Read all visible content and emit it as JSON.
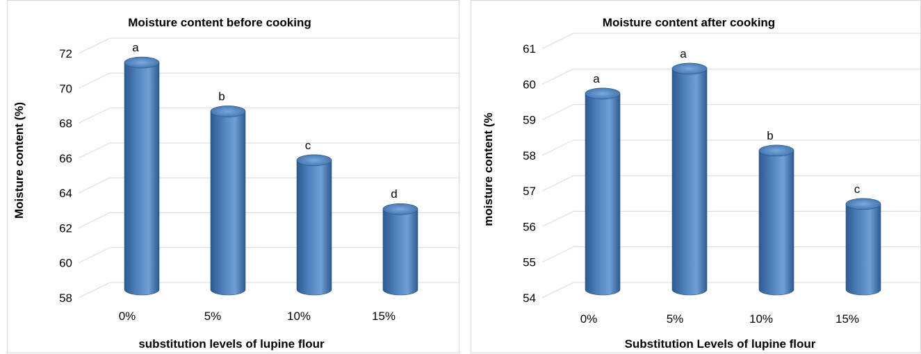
{
  "chart_data": [
    {
      "type": "bar",
      "title": "Moisture content before cooking",
      "xlabel": "substitution levels of lupine flour",
      "ylabel": "Moisture content (%)",
      "categories": [
        "0%",
        "5%",
        "10%",
        "15%"
      ],
      "values": [
        71.0,
        68.2,
        65.4,
        62.6
      ],
      "data_labels": [
        "a",
        "b",
        "c",
        "d"
      ],
      "y_ticks": [
        "58",
        "60",
        "62",
        "64",
        "66",
        "68",
        "70",
        "72"
      ],
      "ylim": [
        58,
        72
      ],
      "grid": true,
      "bar_color": "#4f81bd"
    },
    {
      "type": "bar",
      "title": "Moisture content after cooking",
      "xlabel": "Substitution Levels of lupine flour",
      "ylabel": "moisture content (%",
      "categories": [
        "0%",
        "5%",
        "10%",
        "15%"
      ],
      "values": [
        59.5,
        60.2,
        57.9,
        56.4
      ],
      "data_labels": [
        "a",
        "a",
        "b",
        "c"
      ],
      "y_ticks": [
        "54",
        "55",
        "56",
        "57",
        "58",
        "59",
        "60",
        "61"
      ],
      "ylim": [
        54,
        61
      ],
      "grid": true,
      "bar_color": "#4f81bd"
    }
  ]
}
